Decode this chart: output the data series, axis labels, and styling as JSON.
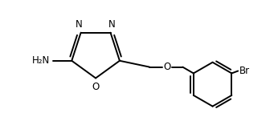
{
  "background_color": "#ffffff",
  "line_color": "#000000",
  "line_width": 1.4,
  "font_size": 8.5,
  "figsize": [
    3.46,
    1.41
  ],
  "dpi": 100,
  "NH2_label": "H₂N",
  "O_label": "O",
  "Br_label": "Br",
  "N_label": "N"
}
